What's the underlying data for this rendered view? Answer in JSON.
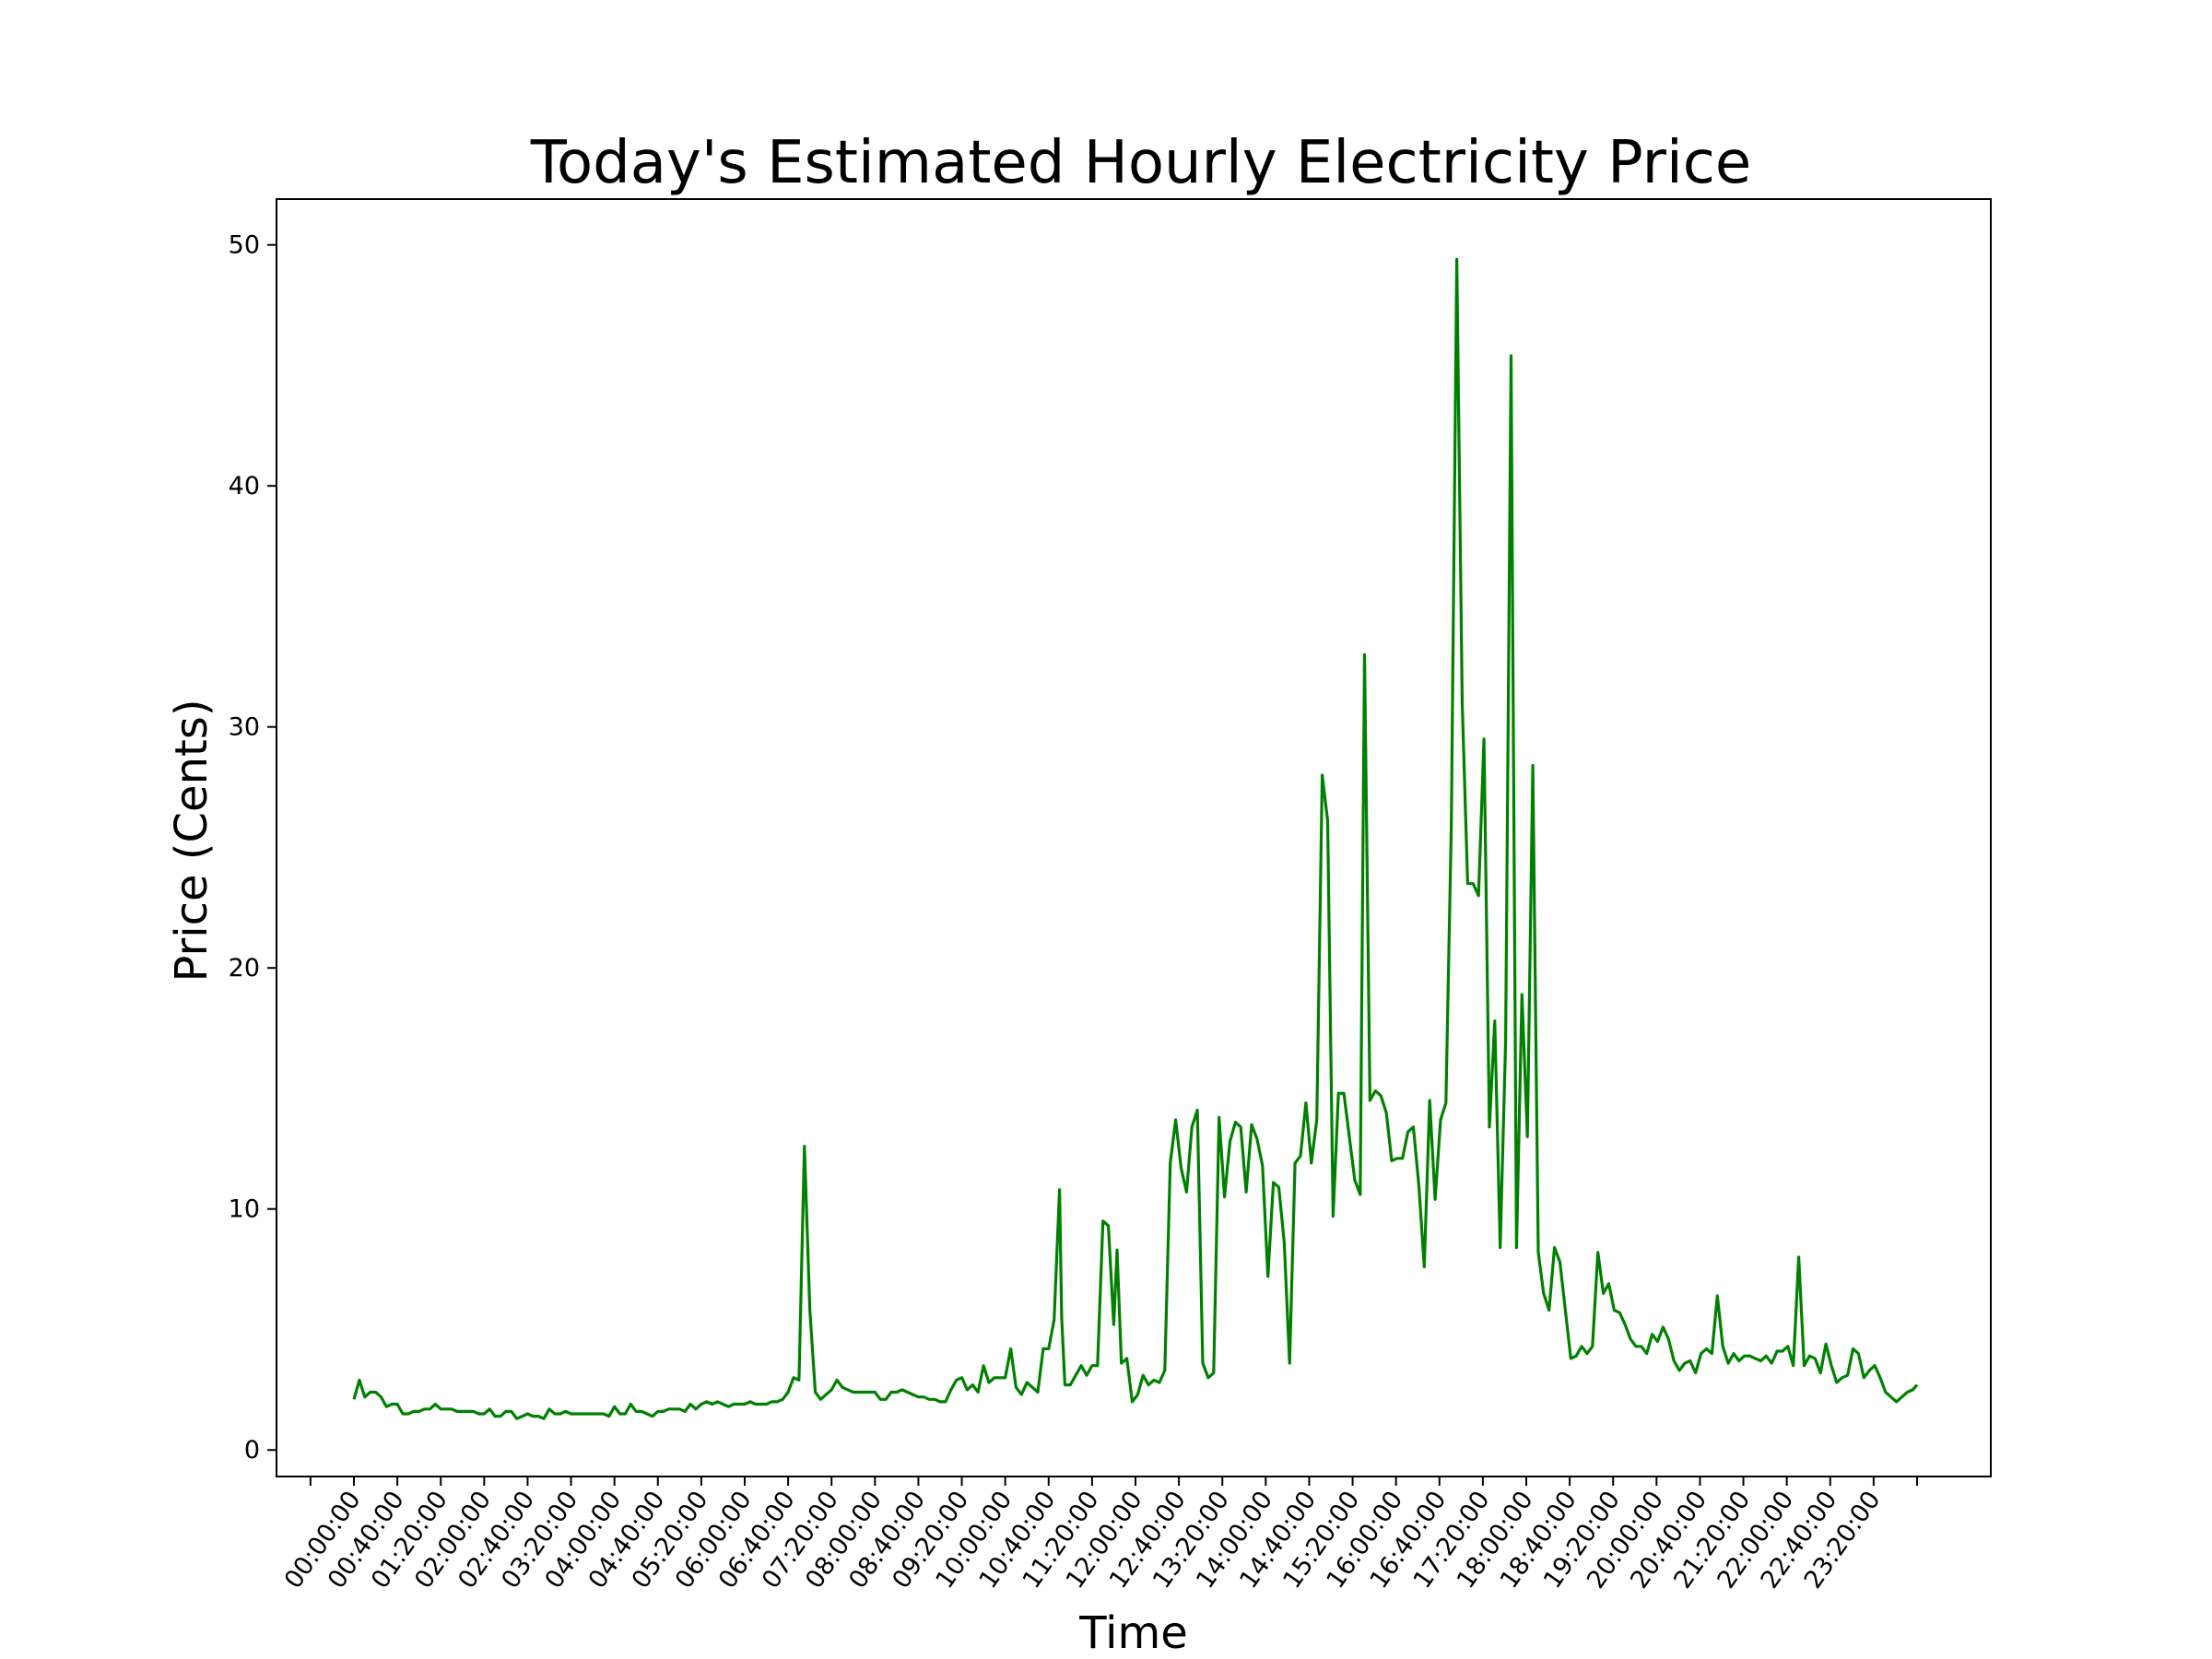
{
  "chart_data": {
    "type": "line",
    "title": "Today's Estimated Hourly Electricity Price",
    "xlabel": "Time",
    "ylabel": "Price (Cents)",
    "ylim": [
      -1.1,
      51.9
    ],
    "yticks": [
      0,
      10,
      20,
      30,
      40,
      50
    ],
    "xtick_labels": [
      "00:00:00",
      "00:40:00",
      "01:20:00",
      "02:00:00",
      "02:40:00",
      "03:20:00",
      "04:00:00",
      "04:40:00",
      "05:20:00",
      "06:00:00",
      "06:40:00",
      "07:20:00",
      "08:00:00",
      "08:40:00",
      "09:20:00",
      "10:00:00",
      "10:40:00",
      "11:20:00",
      "12:00:00",
      "12:40:00",
      "13:20:00",
      "14:00:00",
      "14:40:00",
      "15:20:00",
      "16:00:00",
      "16:40:00",
      "17:20:00",
      "18:00:00",
      "18:40:00",
      "19:20:00",
      "20:00:00",
      "20:40:00",
      "21:20:00",
      "22:00:00",
      "22:40:00",
      "23:20:00"
    ],
    "grid": false,
    "legend": "none",
    "series": [
      {
        "color": "#008000",
        "points": [
          [
            0,
            2.1
          ],
          [
            5,
            2.9
          ],
          [
            10,
            2.2
          ],
          [
            15,
            2.4
          ],
          [
            20,
            2.4
          ],
          [
            25,
            2.2
          ],
          [
            30,
            1.8
          ],
          [
            35,
            1.9
          ],
          [
            40,
            1.9
          ],
          [
            45,
            1.5
          ],
          [
            50,
            1.5
          ],
          [
            55,
            1.6
          ],
          [
            60,
            1.6
          ],
          [
            65,
            1.7
          ],
          [
            70,
            1.7
          ],
          [
            75,
            1.9
          ],
          [
            80,
            1.7
          ],
          [
            85,
            1.7
          ],
          [
            90,
            1.7
          ],
          [
            95,
            1.6
          ],
          [
            100,
            1.6
          ],
          [
            105,
            1.6
          ],
          [
            110,
            1.6
          ],
          [
            115,
            1.5
          ],
          [
            120,
            1.5
          ],
          [
            125,
            1.7
          ],
          [
            130,
            1.4
          ],
          [
            135,
            1.4
          ],
          [
            140,
            1.6
          ],
          [
            145,
            1.6
          ],
          [
            150,
            1.3
          ],
          [
            155,
            1.4
          ],
          [
            160,
            1.5
          ],
          [
            165,
            1.4
          ],
          [
            170,
            1.4
          ],
          [
            175,
            1.3
          ],
          [
            180,
            1.7
          ],
          [
            185,
            1.5
          ],
          [
            190,
            1.5
          ],
          [
            195,
            1.6
          ],
          [
            200,
            1.5
          ],
          [
            210,
            1.5
          ],
          [
            220,
            1.5
          ],
          [
            230,
            1.5
          ],
          [
            235,
            1.4
          ],
          [
            240,
            1.8
          ],
          [
            245,
            1.5
          ],
          [
            250,
            1.5
          ],
          [
            255,
            1.9
          ],
          [
            260,
            1.6
          ],
          [
            265,
            1.6
          ],
          [
            270,
            1.5
          ],
          [
            275,
            1.4
          ],
          [
            280,
            1.6
          ],
          [
            285,
            1.6
          ],
          [
            290,
            1.7
          ],
          [
            300,
            1.7
          ],
          [
            305,
            1.6
          ],
          [
            310,
            1.9
          ],
          [
            315,
            1.7
          ],
          [
            320,
            1.9
          ],
          [
            325,
            2.0
          ],
          [
            330,
            1.9
          ],
          [
            335,
            2.0
          ],
          [
            340,
            1.9
          ],
          [
            345,
            1.8
          ],
          [
            350,
            1.9
          ],
          [
            355,
            1.9
          ],
          [
            360,
            1.9
          ],
          [
            365,
            2.0
          ],
          [
            370,
            1.9
          ],
          [
            380,
            1.9
          ],
          [
            385,
            2.0
          ],
          [
            390,
            2.0
          ],
          [
            395,
            2.1
          ],
          [
            400,
            2.4
          ],
          [
            405,
            3.0
          ],
          [
            410,
            2.9
          ],
          [
            415,
            12.6
          ],
          [
            420,
            5.8
          ],
          [
            425,
            2.4
          ],
          [
            430,
            2.1
          ],
          [
            435,
            2.3
          ],
          [
            440,
            2.5
          ],
          [
            445,
            2.9
          ],
          [
            450,
            2.6
          ],
          [
            455,
            2.5
          ],
          [
            460,
            2.4
          ],
          [
            480,
            2.4
          ],
          [
            485,
            2.1
          ],
          [
            490,
            2.1
          ],
          [
            495,
            2.4
          ],
          [
            500,
            2.4
          ],
          [
            505,
            2.5
          ],
          [
            510,
            2.4
          ],
          [
            515,
            2.3
          ],
          [
            520,
            2.2
          ],
          [
            525,
            2.2
          ],
          [
            530,
            2.1
          ],
          [
            535,
            2.1
          ],
          [
            540,
            2.0
          ],
          [
            545,
            2.0
          ],
          [
            550,
            2.5
          ],
          [
            555,
            2.9
          ],
          [
            560,
            3.0
          ],
          [
            565,
            2.5
          ],
          [
            570,
            2.7
          ],
          [
            575,
            2.4
          ],
          [
            580,
            3.5
          ],
          [
            585,
            2.8
          ],
          [
            590,
            3.0
          ],
          [
            600,
            3.0
          ],
          [
            605,
            4.2
          ],
          [
            610,
            2.6
          ],
          [
            615,
            2.3
          ],
          [
            620,
            2.8
          ],
          [
            625,
            2.6
          ],
          [
            630,
            2.4
          ],
          [
            635,
            4.2
          ],
          [
            640,
            4.2
          ],
          [
            645,
            5.4
          ],
          [
            650,
            10.8
          ],
          [
            652,
            5.5
          ],
          [
            655,
            2.7
          ],
          [
            660,
            2.7
          ],
          [
            665,
            3.1
          ],
          [
            670,
            3.5
          ],
          [
            675,
            3.1
          ],
          [
            680,
            3.5
          ],
          [
            685,
            3.5
          ],
          [
            690,
            9.5
          ],
          [
            695,
            9.3
          ],
          [
            700,
            5.2
          ],
          [
            703,
            8.3
          ],
          [
            707,
            3.6
          ],
          [
            712,
            3.8
          ],
          [
            717,
            2.0
          ],
          [
            722,
            2.3
          ],
          [
            727,
            3.1
          ],
          [
            732,
            2.7
          ],
          [
            737,
            2.9
          ],
          [
            742,
            2.8
          ],
          [
            747,
            3.3
          ],
          [
            752,
            11.9
          ],
          [
            757,
            13.7
          ],
          [
            762,
            11.7
          ],
          [
            767,
            10.7
          ],
          [
            772,
            13.4
          ],
          [
            777,
            14.1
          ],
          [
            782,
            3.6
          ],
          [
            787,
            3.0
          ],
          [
            792,
            3.2
          ],
          [
            797,
            13.8
          ],
          [
            802,
            10.5
          ],
          [
            807,
            12.8
          ],
          [
            812,
            13.6
          ],
          [
            817,
            13.4
          ],
          [
            822,
            10.7
          ],
          [
            827,
            13.5
          ],
          [
            832,
            12.9
          ],
          [
            837,
            11.8
          ],
          [
            842,
            7.2
          ],
          [
            847,
            11.1
          ],
          [
            852,
            10.9
          ],
          [
            857,
            8.6
          ],
          [
            862,
            3.6
          ],
          [
            867,
            11.9
          ],
          [
            872,
            12.2
          ],
          [
            877,
            14.4
          ],
          [
            882,
            11.9
          ],
          [
            887,
            13.7
          ],
          [
            892,
            28.0
          ],
          [
            897,
            26.1
          ],
          [
            902,
            9.7
          ],
          [
            907,
            14.8
          ],
          [
            912,
            14.8
          ],
          [
            917,
            13.0
          ],
          [
            922,
            11.2
          ],
          [
            927,
            10.6
          ],
          [
            931,
            33.0
          ],
          [
            936,
            14.5
          ],
          [
            941,
            14.9
          ],
          [
            946,
            14.7
          ],
          [
            951,
            14.0
          ],
          [
            956,
            12.0
          ],
          [
            961,
            12.1
          ],
          [
            966,
            12.1
          ],
          [
            971,
            13.2
          ],
          [
            976,
            13.4
          ],
          [
            981,
            11.0
          ],
          [
            986,
            7.6
          ],
          [
            991,
            14.5
          ],
          [
            996,
            10.4
          ],
          [
            1001,
            13.7
          ],
          [
            1006,
            14.4
          ],
          [
            1011,
            26.0
          ],
          [
            1016,
            49.4
          ],
          [
            1021,
            31.0
          ],
          [
            1026,
            23.5
          ],
          [
            1031,
            23.5
          ],
          [
            1036,
            23.0
          ],
          [
            1041,
            29.5
          ],
          [
            1046,
            13.4
          ],
          [
            1051,
            17.8
          ],
          [
            1056,
            8.4
          ],
          [
            1061,
            17.0
          ],
          [
            1066,
            45.4
          ],
          [
            1071,
            8.4
          ],
          [
            1076,
            18.9
          ],
          [
            1081,
            13.0
          ],
          [
            1086,
            28.4
          ],
          [
            1091,
            8.2
          ],
          [
            1096,
            6.5
          ],
          [
            1101,
            5.8
          ],
          [
            1106,
            8.4
          ],
          [
            1111,
            7.8
          ],
          [
            1116,
            5.8
          ],
          [
            1121,
            3.8
          ],
          [
            1126,
            3.9
          ],
          [
            1131,
            4.3
          ],
          [
            1136,
            4.0
          ],
          [
            1141,
            4.3
          ],
          [
            1146,
            8.2
          ],
          [
            1151,
            6.5
          ],
          [
            1156,
            6.9
          ],
          [
            1161,
            5.8
          ],
          [
            1166,
            5.7
          ],
          [
            1171,
            5.2
          ],
          [
            1176,
            4.6
          ],
          [
            1181,
            4.3
          ],
          [
            1186,
            4.3
          ],
          [
            1191,
            4.0
          ],
          [
            1196,
            4.8
          ],
          [
            1201,
            4.5
          ],
          [
            1206,
            5.1
          ],
          [
            1211,
            4.6
          ],
          [
            1216,
            3.7
          ],
          [
            1221,
            3.3
          ],
          [
            1226,
            3.6
          ],
          [
            1231,
            3.7
          ],
          [
            1236,
            3.2
          ],
          [
            1241,
            4.0
          ],
          [
            1246,
            4.2
          ],
          [
            1251,
            4.0
          ],
          [
            1256,
            6.4
          ],
          [
            1261,
            4.3
          ],
          [
            1266,
            3.6
          ],
          [
            1271,
            4.0
          ],
          [
            1276,
            3.7
          ],
          [
            1281,
            3.9
          ],
          [
            1286,
            3.9
          ],
          [
            1291,
            3.8
          ],
          [
            1296,
            3.7
          ],
          [
            1301,
            3.9
          ],
          [
            1306,
            3.6
          ],
          [
            1311,
            4.1
          ],
          [
            1316,
            4.1
          ],
          [
            1321,
            4.3
          ],
          [
            1326,
            3.5
          ],
          [
            1331,
            8.0
          ],
          [
            1336,
            3.5
          ],
          [
            1341,
            3.9
          ],
          [
            1346,
            3.8
          ],
          [
            1351,
            3.2
          ],
          [
            1356,
            4.4
          ],
          [
            1361,
            3.5
          ],
          [
            1366,
            2.8
          ],
          [
            1371,
            3.0
          ],
          [
            1376,
            3.1
          ],
          [
            1381,
            4.2
          ],
          [
            1386,
            4.0
          ],
          [
            1391,
            3.0
          ],
          [
            1396,
            3.3
          ],
          [
            1401,
            3.5
          ],
          [
            1406,
            3.0
          ],
          [
            1411,
            2.4
          ],
          [
            1416,
            2.2
          ],
          [
            1421,
            2.0
          ],
          [
            1426,
            2.2
          ],
          [
            1431,
            2.4
          ],
          [
            1436,
            2.5
          ],
          [
            1440,
            2.7
          ]
        ]
      }
    ]
  }
}
